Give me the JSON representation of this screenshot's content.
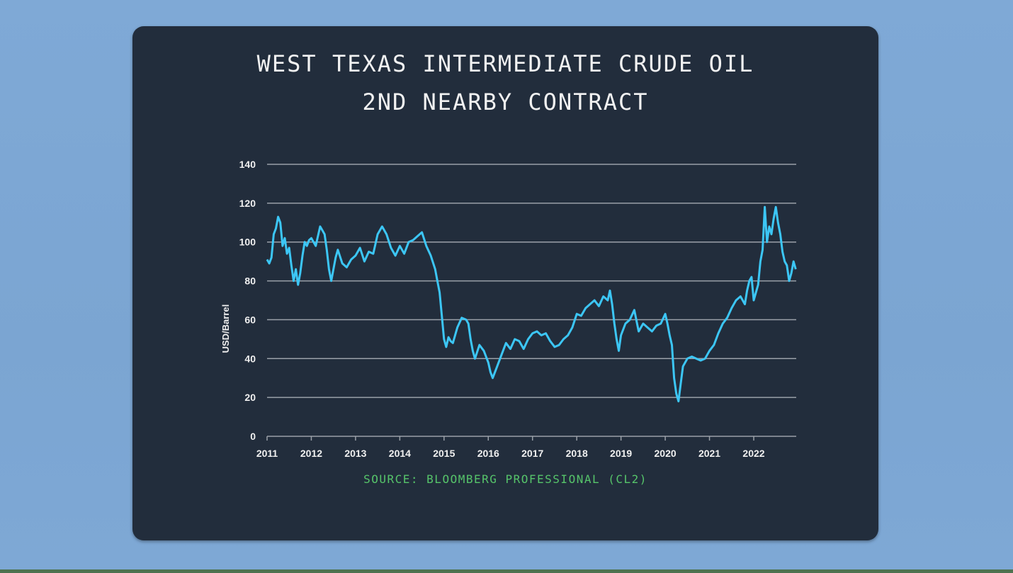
{
  "title_line1": "WEST TEXAS INTERMEDIATE CRUDE OIL",
  "title_line2": "2ND NEARBY CONTRACT",
  "source": "SOURCE: BLOOMBERG PROFESSIONAL (CL2)",
  "colors": {
    "background": "#7ba5d2",
    "card": "#222d3c",
    "line": "#3cc6f5",
    "grid": "#9aa0a8",
    "source_text": "#56c46a",
    "title_text": "#f2f2f2"
  },
  "chart_data": {
    "type": "line",
    "title": "WEST TEXAS INTERMEDIATE CRUDE OIL 2ND NEARBY CONTRACT",
    "xlabel": "",
    "ylabel": "USD/Barrel",
    "ylim": [
      0,
      140
    ],
    "yticks": [
      0,
      20,
      40,
      60,
      80,
      100,
      120,
      140
    ],
    "xticks": [
      "2011",
      "2012",
      "2013",
      "2014",
      "2015",
      "2016",
      "2017",
      "2018",
      "2019",
      "2020",
      "2021",
      "2022"
    ],
    "xlim": [
      2011.0,
      2022.95
    ],
    "grid": "horizontal",
    "legend": "none",
    "source": "Bloomberg Professional (CL2)",
    "series": [
      {
        "name": "WTI 2nd Nearby (CL2)",
        "x": [
          2011.0,
          2011.05,
          2011.1,
          2011.15,
          2011.2,
          2011.25,
          2011.3,
          2011.35,
          2011.4,
          2011.45,
          2011.5,
          2011.55,
          2011.6,
          2011.65,
          2011.7,
          2011.75,
          2011.8,
          2011.85,
          2011.9,
          2011.95,
          2012.0,
          2012.1,
          2012.2,
          2012.25,
          2012.3,
          2012.35,
          2012.4,
          2012.45,
          2012.5,
          2012.55,
          2012.6,
          2012.7,
          2012.8,
          2012.9,
          2013.0,
          2013.1,
          2013.2,
          2013.3,
          2013.4,
          2013.5,
          2013.6,
          2013.7,
          2013.8,
          2013.9,
          2014.0,
          2014.1,
          2014.2,
          2014.3,
          2014.4,
          2014.5,
          2014.6,
          2014.7,
          2014.8,
          2014.85,
          2014.9,
          2014.95,
          2015.0,
          2015.05,
          2015.1,
          2015.15,
          2015.2,
          2015.3,
          2015.4,
          2015.5,
          2015.55,
          2015.6,
          2015.65,
          2015.7,
          2015.8,
          2015.9,
          2016.0,
          2016.05,
          2016.1,
          2016.2,
          2016.3,
          2016.4,
          2016.5,
          2016.6,
          2016.7,
          2016.8,
          2016.9,
          2017.0,
          2017.1,
          2017.2,
          2017.3,
          2017.4,
          2017.5,
          2017.6,
          2017.7,
          2017.8,
          2017.9,
          2018.0,
          2018.1,
          2018.2,
          2018.3,
          2018.4,
          2018.5,
          2018.6,
          2018.7,
          2018.75,
          2018.8,
          2018.85,
          2018.9,
          2018.95,
          2019.0,
          2019.1,
          2019.2,
          2019.3,
          2019.4,
          2019.5,
          2019.6,
          2019.7,
          2019.8,
          2019.9,
          2020.0,
          2020.05,
          2020.1,
          2020.15,
          2020.2,
          2020.25,
          2020.3,
          2020.35,
          2020.4,
          2020.5,
          2020.6,
          2020.7,
          2020.8,
          2020.9,
          2021.0,
          2021.1,
          2021.2,
          2021.3,
          2021.4,
          2021.5,
          2021.6,
          2021.7,
          2021.8,
          2021.85,
          2021.9,
          2021.95,
          2022.0,
          2022.05,
          2022.1,
          2022.15,
          2022.2,
          2022.25,
          2022.3,
          2022.35,
          2022.4,
          2022.45,
          2022.5,
          2022.55,
          2022.6,
          2022.65,
          2022.7,
          2022.75,
          2022.8,
          2022.85,
          2022.9,
          2022.95
        ],
        "values": [
          91,
          89,
          92,
          104,
          107,
          113,
          110,
          98,
          102,
          94,
          97,
          88,
          80,
          86,
          78,
          84,
          93,
          100,
          98,
          101,
          102,
          98,
          108,
          106,
          104,
          96,
          86,
          80,
          86,
          92,
          96,
          89,
          87,
          91,
          93,
          97,
          90,
          95,
          94,
          104,
          108,
          104,
          97,
          93,
          98,
          94,
          100,
          101,
          103,
          105,
          98,
          93,
          86,
          80,
          74,
          62,
          50,
          46,
          51,
          49,
          48,
          56,
          61,
          60,
          58,
          50,
          44,
          40,
          47,
          44,
          38,
          33,
          30,
          36,
          42,
          48,
          45,
          50,
          49,
          45,
          50,
          53,
          54,
          52,
          53,
          49,
          46,
          47,
          50,
          52,
          56,
          63,
          62,
          66,
          68,
          70,
          67,
          72,
          70,
          75,
          68,
          58,
          50,
          44,
          52,
          58,
          60,
          65,
          54,
          58,
          56,
          54,
          57,
          58,
          63,
          58,
          52,
          47,
          30,
          22,
          18,
          27,
          36,
          40,
          41,
          40,
          39,
          40,
          44,
          47,
          53,
          58,
          61,
          66,
          70,
          72,
          68,
          75,
          80,
          82,
          70,
          74,
          78,
          90,
          96,
          118,
          100,
          108,
          104,
          112,
          118,
          110,
          104,
          95,
          90,
          88,
          80,
          84,
          90,
          86
        ]
      }
    ]
  }
}
